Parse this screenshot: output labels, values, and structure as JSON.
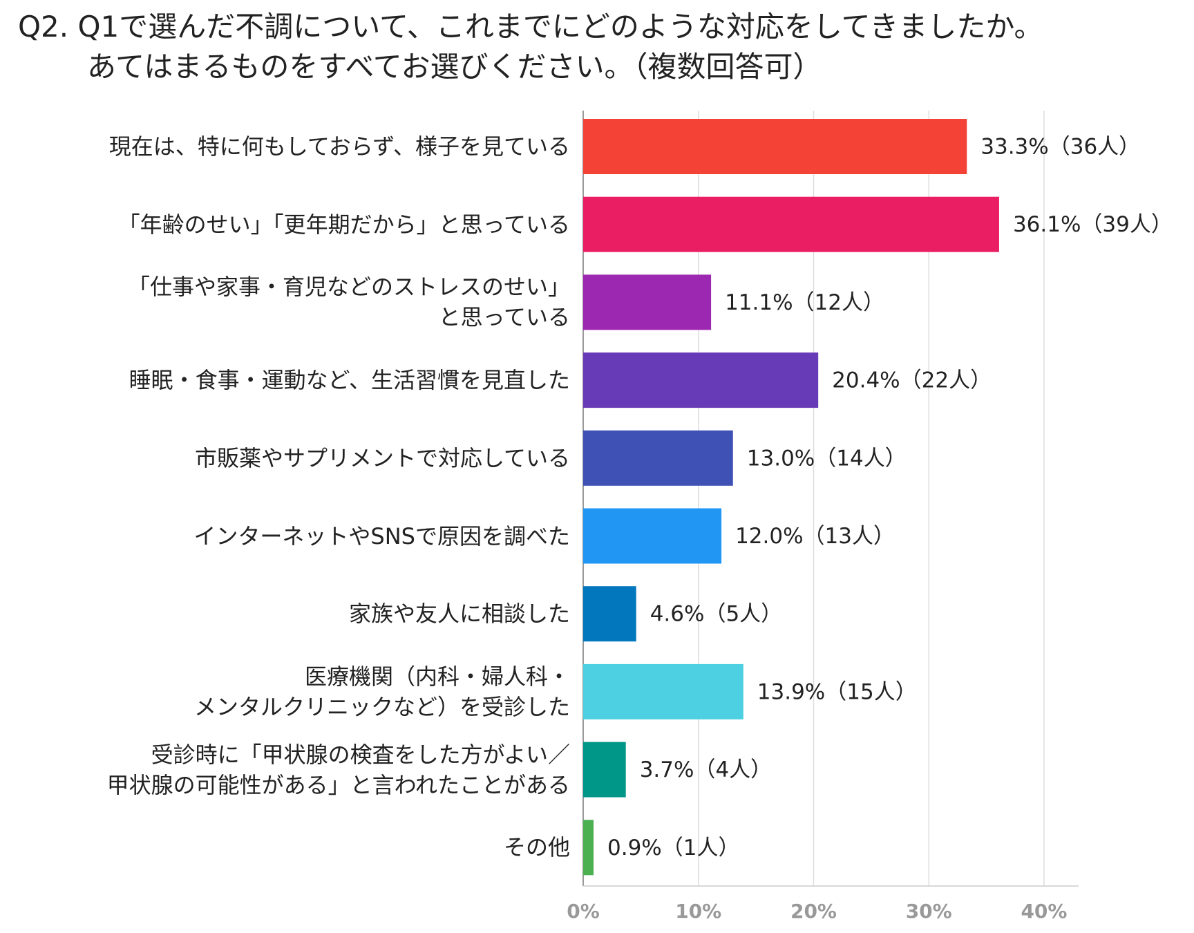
{
  "chart_data": {
    "type": "bar",
    "orientation": "horizontal",
    "title": "Q2. Q1で選んだ不調について、これまでにどのような対応をしてきましたか。\nあてはまるものをすべてお選びください。（複数回答可）",
    "categories": [
      "現在は、特に何もしておらず、様子を見ている",
      "「年齢のせい」「更年期だから」と思っている",
      "「仕事や家事・育児などのストレスのせい」\nと思っている",
      "睡眠・食事・運動など、生活習慣を見直した",
      "市販薬やサプリメントで対応している",
      "インターネットやSNSで原因を調べた",
      "家族や友人に相談した",
      "医療機関（内科・婦人科・\nメンタルクリニックなど）を受診した",
      "受診時に「甲状腺の検査をした方がよい／\n甲状腺の可能性がある」と言われたことがある",
      "その他"
    ],
    "values": [
      33.3,
      36.1,
      11.1,
      20.4,
      13.0,
      12.0,
      4.6,
      13.9,
      3.7,
      0.9
    ],
    "value_labels": [
      "33.3%（36人）",
      "36.1%（39人）",
      "11.1%（12人）",
      "20.4%（22人）",
      "13.0%（14人）",
      "12.0%（13人）",
      "4.6%（5人）",
      "13.9%（15人）",
      "3.7%（4人）",
      "0.9%（1人）"
    ],
    "colors": [
      "#f44336",
      "#e91e63",
      "#9c27b0",
      "#673ab7",
      "#3f51b5",
      "#2196f3",
      "#0277bd",
      "#4dd0e1",
      "#009688",
      "#4caf50"
    ],
    "xlim": [
      0,
      43
    ],
    "xticks": [
      {
        "value": 0,
        "label": "0%"
      },
      {
        "value": 10,
        "label": "10%"
      },
      {
        "value": 20,
        "label": "20%"
      },
      {
        "value": 30,
        "label": "30%"
      },
      {
        "value": 40,
        "label": "40%"
      }
    ],
    "grid": true
  }
}
